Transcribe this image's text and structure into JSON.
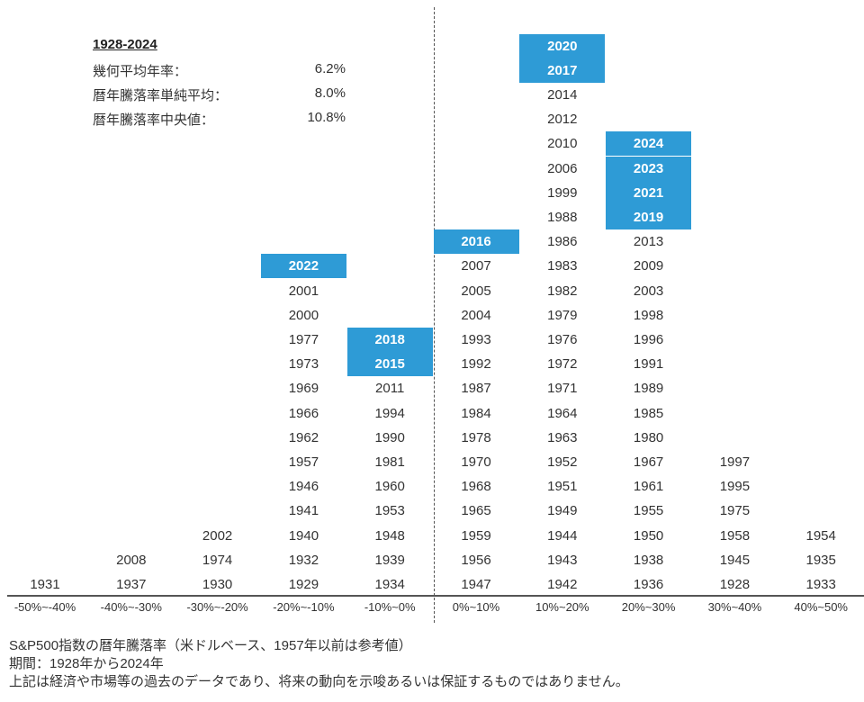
{
  "stats": {
    "title": "1928-2024",
    "rows": [
      {
        "label": "幾何平均年率：",
        "value": "6.2%"
      },
      {
        "label": "暦年騰落率単純平均：",
        "value": "8.0%"
      },
      {
        "label": "暦年騰落率中央値：",
        "value": "10.8%"
      }
    ]
  },
  "chart_data": {
    "type": "table",
    "title": "S&P500指数の暦年騰落率（米ドルベース、1957年以前は参考値）",
    "highlight_color": "#2E9BD6",
    "categories": [
      "-50%~-40%",
      "-40%~-30%",
      "-30%~-20%",
      "-20%~-10%",
      "-10%~0%",
      "0%~10%",
      "10%~20%",
      "20%~30%",
      "30%~40%",
      "40%~50%"
    ],
    "bins": [
      [
        "1931"
      ],
      [
        "1937",
        "2008"
      ],
      [
        "1930",
        "1974",
        "2002"
      ],
      [
        "1929",
        "1932",
        "1940",
        "1941",
        "1946",
        "1957",
        "1962",
        "1966",
        "1969",
        "1973",
        "1977",
        "2000",
        "2001",
        "2022"
      ],
      [
        "1934",
        "1939",
        "1948",
        "1953",
        "1960",
        "1981",
        "1990",
        "1994",
        "2011",
        "2015",
        "2018"
      ],
      [
        "1947",
        "1956",
        "1959",
        "1965",
        "1968",
        "1970",
        "1978",
        "1984",
        "1987",
        "1992",
        "1993",
        "2004",
        "2005",
        "2007",
        "2016"
      ],
      [
        "1942",
        "1943",
        "1944",
        "1949",
        "1951",
        "1952",
        "1963",
        "1964",
        "1971",
        "1972",
        "1976",
        "1979",
        "1982",
        "1983",
        "1986",
        "1988",
        "1999",
        "2006",
        "2010",
        "2012",
        "2014",
        "2017",
        "2020"
      ],
      [
        "1936",
        "1938",
        "1950",
        "1955",
        "1961",
        "1967",
        "1980",
        "1985",
        "1989",
        "1991",
        "1996",
        "1998",
        "2003",
        "2009",
        "2013",
        "2019",
        "2021",
        "2023",
        "2024"
      ],
      [
        "1928",
        "1945",
        "1958",
        "1975",
        "1995",
        "1997"
      ],
      [
        "1933",
        "1935",
        "1954"
      ]
    ],
    "highlighted_years": [
      "2015",
      "2016",
      "2017",
      "2018",
      "2019",
      "2020",
      "2021",
      "2022",
      "2023",
      "2024"
    ]
  },
  "footer": {
    "line1": "S&P500指数の暦年騰落率（米ドルベース、1957年以前は参考値）",
    "line2": "期間：1928年から2024年",
    "line3": "上記は経済や市場等の過去のデータであり、将来の動向を示唆あるいは保証するものではありません。"
  }
}
